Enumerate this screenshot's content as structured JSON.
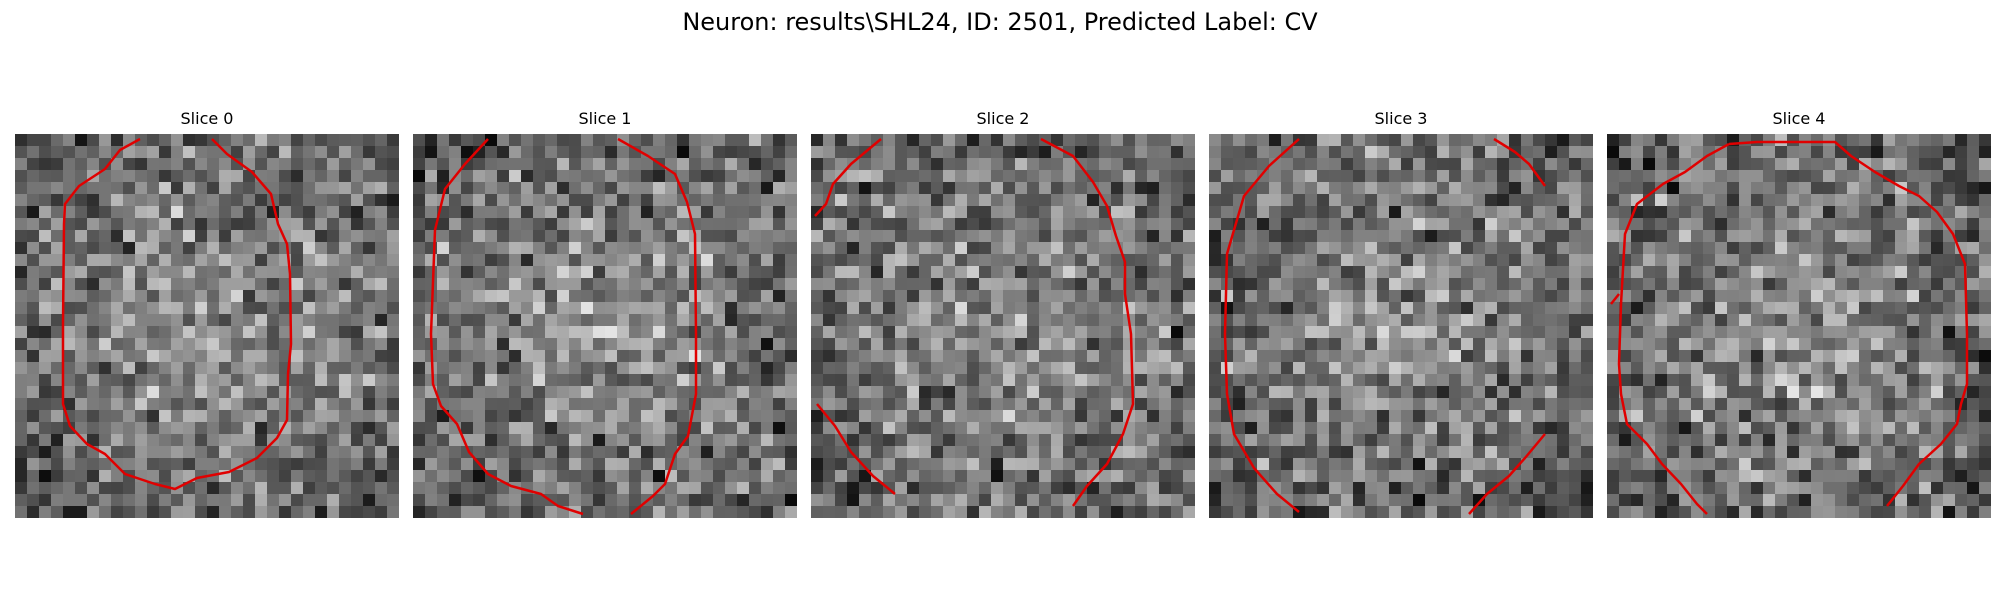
{
  "figure": {
    "title": "Neuron: results\\SHL24, ID: 2501, Predicted Label: CV"
  },
  "panels": [
    {
      "title": "Slice 0",
      "seed": 11
    },
    {
      "title": "Slice 1",
      "seed": 23
    },
    {
      "title": "Slice 2",
      "seed": 37
    },
    {
      "title": "Slice 3",
      "seed": 41
    },
    {
      "title": "Slice 4",
      "seed": 59
    }
  ],
  "colors": {
    "contour": "#e00000",
    "background": "#ffffff"
  }
}
